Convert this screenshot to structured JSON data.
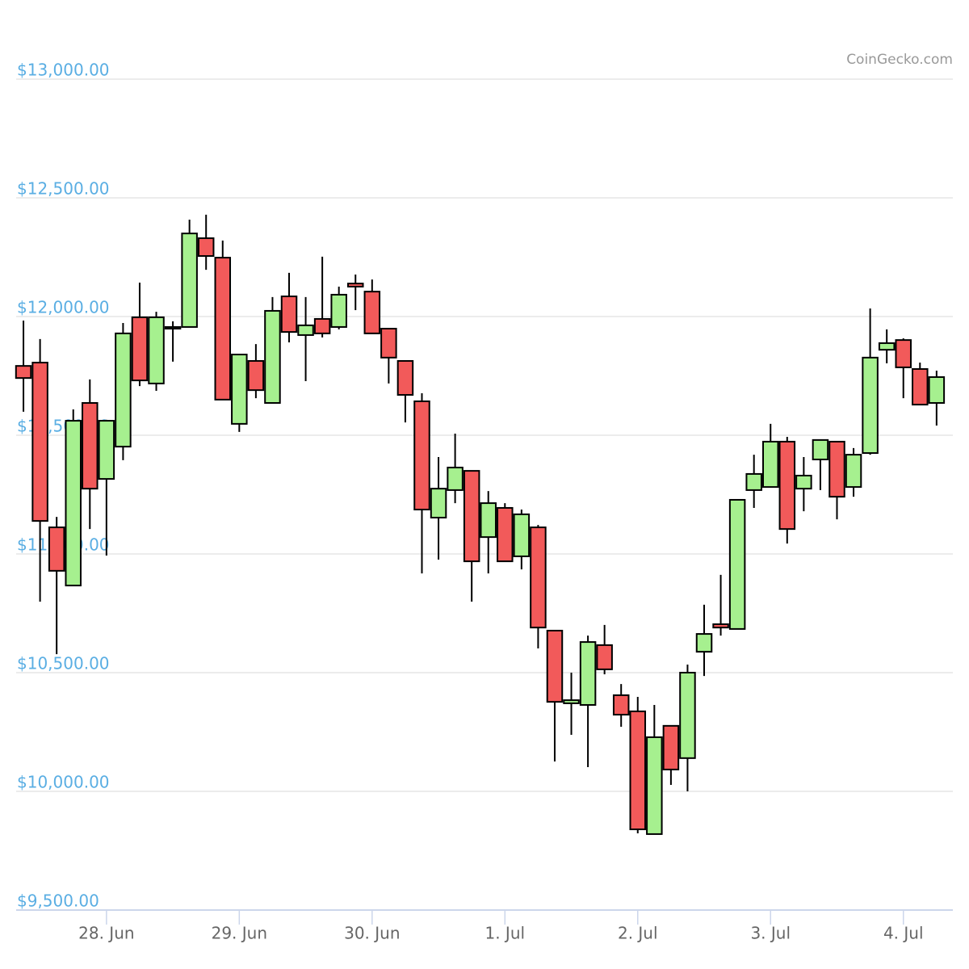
{
  "chart_data": {
    "type": "candlestick",
    "watermark": "CoinGecko.com",
    "up_color": "#a6f08f",
    "down_color": "#f25a5a",
    "grid": true,
    "ylim": [
      9500,
      13000
    ],
    "yticks": [
      {
        "value": 9500,
        "label": "$9,500.00"
      },
      {
        "value": 10000,
        "label": "$10,000.00"
      },
      {
        "value": 10500,
        "label": "$10,500.00"
      },
      {
        "value": 11000,
        "label": "$11,000.00"
      },
      {
        "value": 11500,
        "label": "$11,500.00"
      },
      {
        "value": 12000,
        "label": "$12,000.00"
      },
      {
        "value": 12500,
        "label": "$12,500.00"
      },
      {
        "value": 13000,
        "label": "$13,000.00"
      }
    ],
    "xlim": [
      -0.44,
      55.98
    ],
    "xticks": [
      {
        "value": 5,
        "label": "28. Jun"
      },
      {
        "value": 13,
        "label": "29. Jun"
      },
      {
        "value": 21,
        "label": "30. Jun"
      },
      {
        "value": 29,
        "label": "1. Jul"
      },
      {
        "value": 37,
        "label": "2. Jul"
      },
      {
        "value": 45,
        "label": "3. Jul"
      },
      {
        "value": 53,
        "label": "4. Jul"
      }
    ],
    "open": [
      11792,
      11806,
      11112,
      10867,
      11636,
      11316,
      11452,
      11997,
      11718,
      11949,
      11956,
      12330,
      12248,
      11548,
      11813,
      11636,
      12085,
      11922,
      11990,
      11956,
      12139,
      12105,
      11949,
      11813,
      11643,
      11153,
      11269,
      11350,
      11071,
      11194,
      10990,
      11112,
      10677,
      10371,
      10364,
      10616,
      10405,
      10337,
      9820,
      10276,
      10140,
      10588,
      10704,
      10684,
      11269,
      11282,
      11473,
      11275,
      11398,
      11473,
      11282,
      11425,
      11860,
      11901,
      11779,
      11636
    ],
    "high": [
      11983,
      11905,
      11156,
      11609,
      11735,
      11565,
      11973,
      12143,
      12020,
      11980,
      12408,
      12429,
      12320,
      11840,
      11884,
      12082,
      12184,
      12082,
      12252,
      12126,
      12177,
      12156,
      11949,
      11813,
      11677,
      11408,
      11507,
      11350,
      11265,
      11214,
      11187,
      11122,
      10677,
      10500,
      10656,
      10701,
      10452,
      10398,
      10364,
      10276,
      10534,
      10786,
      10912,
      11228,
      11418,
      11548,
      11493,
      11408,
      11480,
      11473,
      11446,
      12034,
      11946,
      11908,
      11806,
      11772
    ],
    "low": [
      11599,
      10799,
      10578,
      10867,
      11105,
      10993,
      11395,
      11707,
      11687,
      11810,
      11956,
      12197,
      11650,
      11514,
      11656,
      11636,
      11891,
      11728,
      11912,
      11946,
      12027,
      11929,
      11718,
      11554,
      10918,
      10976,
      11214,
      10799,
      10918,
      10969,
      10935,
      10602,
      10126,
      10238,
      10102,
      10493,
      10272,
      9823,
      9820,
      10027,
      10000,
      10486,
      10656,
      10684,
      11194,
      11282,
      11044,
      11180,
      11269,
      11146,
      11241,
      11418,
      11803,
      11656,
      11629,
      11541
    ],
    "close": [
      11741,
      11139,
      10929,
      11561,
      11275,
      11561,
      11929,
      11731,
      11997,
      11956,
      12350,
      12255,
      11650,
      11840,
      11690,
      12024,
      11935,
      11963,
      11929,
      12092,
      12126,
      11929,
      11827,
      11670,
      11187,
      11275,
      11364,
      10969,
      11214,
      10969,
      11167,
      10690,
      10377,
      10384,
      10629,
      10514,
      10323,
      9840,
      10228,
      10092,
      10500,
      10663,
      10690,
      11228,
      11337,
      11473,
      11105,
      11330,
      11480,
      11241,
      11418,
      11827,
      11888,
      11786,
      11629,
      11745
    ]
  }
}
